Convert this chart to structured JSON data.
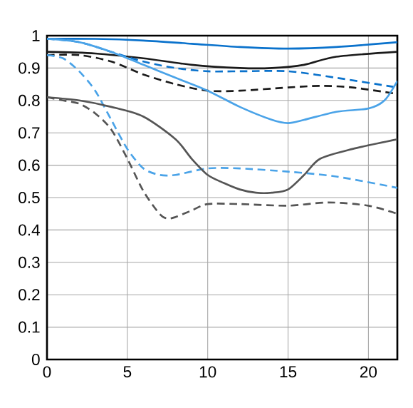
{
  "chart_data": {
    "type": "line",
    "xlim": [
      0,
      21.8
    ],
    "ylim": [
      0,
      1
    ],
    "xticks": [
      0,
      5,
      10,
      15,
      20
    ],
    "yticks": [
      0,
      0.1,
      0.2,
      0.3,
      0.4,
      0.5,
      0.6,
      0.7,
      0.8,
      0.9,
      1
    ],
    "grid": true,
    "marker": "none",
    "series": [
      {
        "color": "#0a72cc",
        "line_style": "solid",
        "x": [
          0,
          3,
          6,
          9,
          12,
          15,
          18,
          21.8
        ],
        "values": [
          0.99,
          0.99,
          0.985,
          0.975,
          0.965,
          0.96,
          0.965,
          0.98
        ]
      },
      {
        "color": "#1a1a1a",
        "line_style": "solid",
        "x": [
          0,
          3,
          6,
          9,
          12,
          14,
          16,
          18,
          21.8
        ],
        "values": [
          0.95,
          0.945,
          0.93,
          0.91,
          0.9,
          0.9,
          0.91,
          0.935,
          0.95
        ]
      },
      {
        "color": "#0a72cc",
        "line_style": "dashed",
        "x": [
          0,
          2,
          4,
          6,
          8,
          10,
          12,
          15,
          18,
          21.8
        ],
        "values": [
          0.99,
          0.98,
          0.95,
          0.92,
          0.9,
          0.89,
          0.89,
          0.89,
          0.87,
          0.84
        ]
      },
      {
        "color": "#1a1a1a",
        "line_style": "dashed",
        "x": [
          0,
          2,
          4,
          6,
          8,
          10,
          12,
          15,
          17,
          19,
          21.8
        ],
        "values": [
          0.94,
          0.94,
          0.92,
          0.88,
          0.85,
          0.83,
          0.83,
          0.84,
          0.845,
          0.84,
          0.82
        ]
      },
      {
        "color": "#4aa3e8",
        "line_style": "solid",
        "x": [
          0,
          2,
          4,
          6,
          8,
          10,
          12,
          14,
          15,
          16,
          18,
          20,
          21,
          21.8
        ],
        "values": [
          0.99,
          0.98,
          0.95,
          0.91,
          0.87,
          0.83,
          0.78,
          0.74,
          0.73,
          0.74,
          0.765,
          0.775,
          0.8,
          0.86
        ]
      },
      {
        "color": "#4aa3e8",
        "line_style": "dashed",
        "x": [
          0,
          1,
          2,
          3,
          4,
          5,
          6,
          7,
          8,
          10,
          12,
          15,
          18,
          21.8
        ],
        "values": [
          0.94,
          0.93,
          0.89,
          0.83,
          0.74,
          0.65,
          0.59,
          0.57,
          0.57,
          0.59,
          0.59,
          0.58,
          0.565,
          0.53
        ]
      },
      {
        "color": "#555555",
        "line_style": "solid",
        "x": [
          0,
          2,
          4,
          6,
          8,
          9,
          10,
          11,
          12,
          13,
          14,
          15,
          16,
          17,
          19,
          21.8
        ],
        "values": [
          0.81,
          0.8,
          0.78,
          0.75,
          0.68,
          0.62,
          0.57,
          0.545,
          0.525,
          0.515,
          0.515,
          0.525,
          0.57,
          0.62,
          0.65,
          0.68
        ]
      },
      {
        "color": "#555555",
        "line_style": "dashed",
        "x": [
          0,
          1,
          2,
          3,
          4,
          5,
          6,
          7,
          7.5,
          8,
          9,
          10,
          12,
          15,
          17.5,
          20,
          21.8
        ],
        "values": [
          0.81,
          0.8,
          0.79,
          0.76,
          0.71,
          0.62,
          0.52,
          0.45,
          0.435,
          0.44,
          0.46,
          0.48,
          0.48,
          0.475,
          0.485,
          0.475,
          0.45
        ]
      }
    ]
  }
}
